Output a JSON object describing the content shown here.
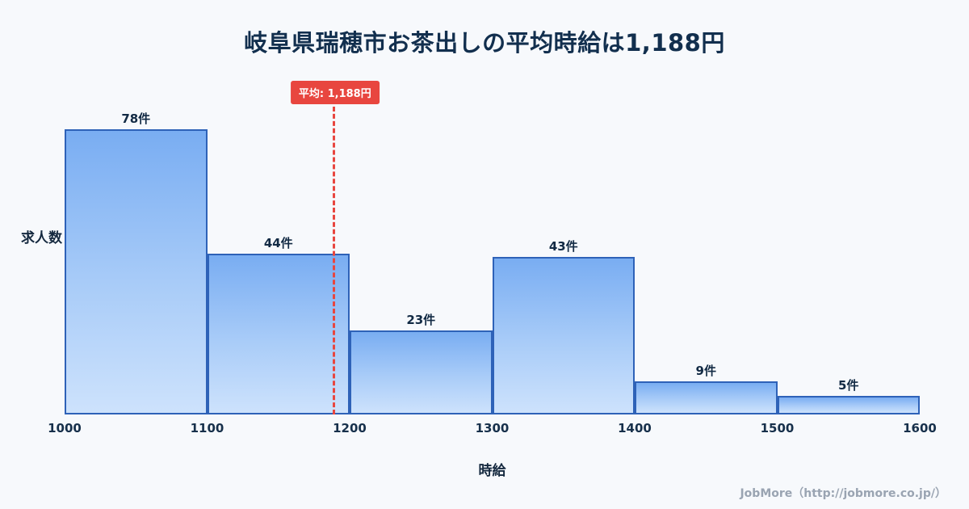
{
  "title": "岐阜県瑞穂市お茶出しの平均時給は1,188円",
  "chart_data": {
    "type": "bar",
    "subtype": "histogram",
    "bins": [
      1000,
      1100,
      1200,
      1300,
      1400,
      1500,
      1600
    ],
    "categories": [
      "1000-1100",
      "1100-1200",
      "1200-1300",
      "1300-1400",
      "1400-1500",
      "1500-1600"
    ],
    "values": [
      78,
      44,
      23,
      43,
      9,
      5
    ],
    "value_labels": [
      "78件",
      "44件",
      "23件",
      "43件",
      "9件",
      "5件"
    ],
    "xlabel": "時給",
    "ylabel": "求人数",
    "x_ticks": [
      "1000",
      "1100",
      "1200",
      "1300",
      "1400",
      "1500",
      "1600"
    ],
    "xlim": [
      1000,
      1600
    ],
    "ylim": [
      0,
      78
    ],
    "grid": false,
    "legend": "none",
    "mean": 1188,
    "mean_label": "平均: 1,188円",
    "colors": {
      "bar_fill_top": "#79adf2",
      "bar_fill_bottom": "#cde2fc",
      "bar_border": "#2e62b8",
      "mean_line": "#e8463f",
      "title_text": "#122f4e",
      "background": "#f7f9fc"
    }
  },
  "footer": {
    "credit": "JobMore（http://jobmore.co.jp/）"
  }
}
